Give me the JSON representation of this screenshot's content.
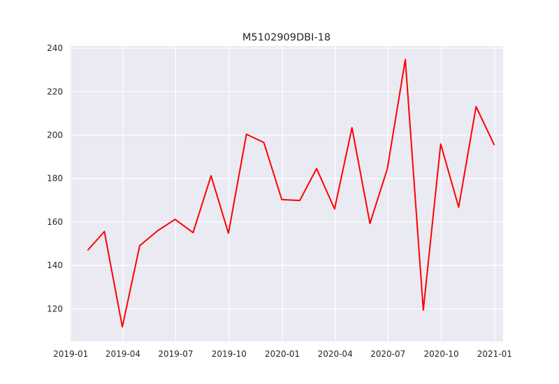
{
  "chart_data": {
    "type": "line",
    "title": "M5102909DBI-18",
    "xlabel": "",
    "ylabel": "",
    "grid": true,
    "background_color": "#EAEAF2",
    "grid_color": "#FFFFFF",
    "line_color": "#FF0000",
    "x_range": [
      "2019-01-01",
      "2021-01-01"
    ],
    "ylim": [
      105,
      241
    ],
    "x_ticks": [
      {
        "date": "2019-01-01",
        "label": "2019-01"
      },
      {
        "date": "2019-04-01",
        "label": "2019-04"
      },
      {
        "date": "2019-07-01",
        "label": "2019-07"
      },
      {
        "date": "2019-10-01",
        "label": "2019-10"
      },
      {
        "date": "2020-01-01",
        "label": "2020-01"
      },
      {
        "date": "2020-04-01",
        "label": "2020-04"
      },
      {
        "date": "2020-07-01",
        "label": "2020-07"
      },
      {
        "date": "2020-10-01",
        "label": "2020-10"
      },
      {
        "date": "2021-01-01",
        "label": "2021-01"
      }
    ],
    "y_ticks": [
      {
        "value": 120,
        "label": "120"
      },
      {
        "value": 140,
        "label": "140"
      },
      {
        "value": 160,
        "label": "160"
      },
      {
        "value": 180,
        "label": "180"
      },
      {
        "value": 200,
        "label": "200"
      },
      {
        "value": 220,
        "label": "220"
      },
      {
        "value": 240,
        "label": "240"
      }
    ],
    "series": [
      {
        "x": [
          "2019-01-31",
          "2019-02-28",
          "2019-03-31",
          "2019-04-30",
          "2019-05-31",
          "2019-06-30",
          "2019-07-31",
          "2019-08-31",
          "2019-09-30",
          "2019-10-31",
          "2019-11-30",
          "2019-12-31",
          "2020-01-31",
          "2020-02-29",
          "2020-03-31",
          "2020-04-30",
          "2020-05-31",
          "2020-06-30",
          "2020-07-31",
          "2020-08-31",
          "2020-09-30",
          "2020-10-31",
          "2020-11-30",
          "2020-12-31"
        ],
        "values": [
          147.2,
          155.6,
          111.7,
          149.1,
          156.0,
          161.2,
          155.1,
          181.3,
          154.8,
          200.4,
          196.6,
          170.3,
          169.9,
          184.6,
          166.0,
          203.4,
          159.3,
          184.5,
          234.8,
          119.4,
          195.9,
          166.8,
          213.1,
          195.7
        ]
      }
    ]
  }
}
